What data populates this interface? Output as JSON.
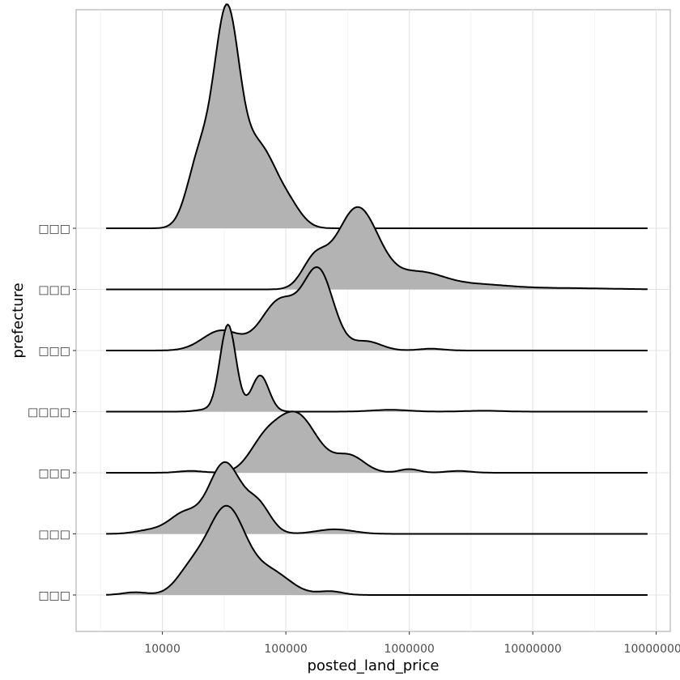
{
  "chart_data": {
    "type": "ridgeline",
    "xlabel": "posted_land_price",
    "ylabel": "prefecture",
    "x_scale": "log10",
    "xlim": [
      2000,
      130000000
    ],
    "x_ticks": [
      {
        "value": 10000,
        "label": "10000"
      },
      {
        "value": 100000,
        "label": "100000"
      },
      {
        "value": 1000000,
        "label": "1000000"
      },
      {
        "value": 10000000,
        "label": "10000000"
      },
      {
        "value": 100000000,
        "label": "100000000"
      }
    ],
    "x_minor_ticks": [
      3162,
      31623,
      316228,
      3162278,
      31622777
    ],
    "density_range": [
      3500,
      85000000
    ],
    "grid": true,
    "fill_color": "#b3b3b3",
    "line_color": "#000000",
    "ridges": [
      {
        "label": "□□□",
        "peaks": [
          {
            "x": 33000,
            "h": 0.95,
            "w": 0.15
          },
          {
            "x": 17000,
            "h": 0.25,
            "w": 0.12
          },
          {
            "x": 75000,
            "h": 0.25,
            "w": 0.16
          },
          {
            "x": 6000,
            "h": 0.03,
            "w": 0.1
          },
          {
            "x": 230000,
            "h": 0.04,
            "w": 0.1
          }
        ]
      },
      {
        "label": "□□□",
        "peaks": [
          {
            "x": 32000,
            "h": 0.78,
            "w": 0.13
          },
          {
            "x": 15000,
            "h": 0.22,
            "w": 0.12
          },
          {
            "x": 60000,
            "h": 0.3,
            "w": 0.1
          },
          {
            "x": 8000,
            "h": 0.04,
            "w": 0.12
          },
          {
            "x": 250000,
            "h": 0.05,
            "w": 0.15
          }
        ]
      },
      {
        "label": "□□□",
        "peaks": [
          {
            "x": 120000,
            "h": 0.65,
            "w": 0.17
          },
          {
            "x": 65000,
            "h": 0.25,
            "w": 0.12
          },
          {
            "x": 330000,
            "h": 0.18,
            "w": 0.12
          },
          {
            "x": 1000000,
            "h": 0.04,
            "w": 0.08
          },
          {
            "x": 2500000,
            "h": 0.02,
            "w": 0.1
          },
          {
            "x": 17000,
            "h": 0.02,
            "w": 0.1
          }
        ]
      },
      {
        "label": "□□□□",
        "peaks": [
          {
            "x": 34000,
            "h": 0.96,
            "w": 0.065
          },
          {
            "x": 62000,
            "h": 0.4,
            "w": 0.07
          },
          {
            "x": 22000,
            "h": 0.02,
            "w": 0.08
          },
          {
            "x": 700000,
            "h": 0.02,
            "w": 0.15
          },
          {
            "x": 4000000,
            "h": 0.01,
            "w": 0.15
          }
        ]
      },
      {
        "label": "□□□",
        "peaks": [
          {
            "x": 185000,
            "h": 0.85,
            "w": 0.12
          },
          {
            "x": 90000,
            "h": 0.55,
            "w": 0.15
          },
          {
            "x": 30000,
            "h": 0.22,
            "w": 0.15
          },
          {
            "x": 450000,
            "h": 0.1,
            "w": 0.12
          },
          {
            "x": 1500000,
            "h": 0.02,
            "w": 0.1
          }
        ]
      },
      {
        "label": "□□□",
        "peaks": [
          {
            "x": 380000,
            "h": 0.9,
            "w": 0.17
          },
          {
            "x": 170000,
            "h": 0.3,
            "w": 0.1
          },
          {
            "x": 1200000,
            "h": 0.18,
            "w": 0.2
          },
          {
            "x": 3500000,
            "h": 0.05,
            "w": 0.25
          },
          {
            "x": 15000000,
            "h": 0.015,
            "w": 0.4
          }
        ]
      },
      {
        "label": "□□□",
        "peaks": [
          {
            "x": 33000,
            "h": 2.2,
            "w": 0.1
          },
          {
            "x": 20000,
            "h": 0.75,
            "w": 0.1
          },
          {
            "x": 60000,
            "h": 0.9,
            "w": 0.15
          },
          {
            "x": 110000,
            "h": 0.15,
            "w": 0.1
          }
        ]
      }
    ]
  }
}
